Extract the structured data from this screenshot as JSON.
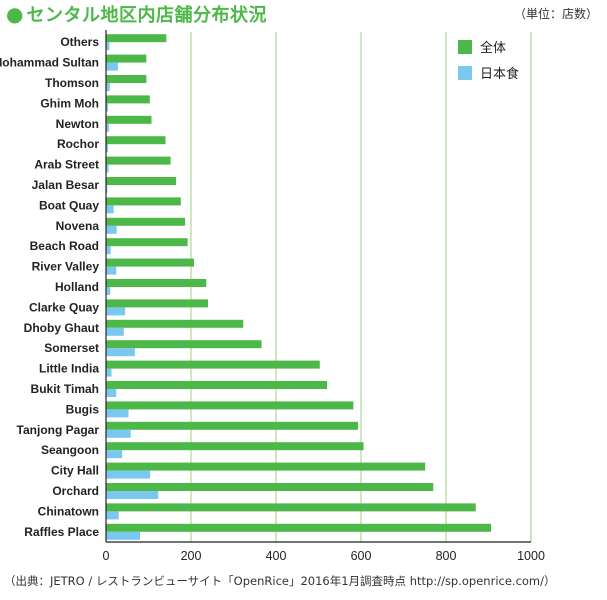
{
  "title": "センタル地区内店舗分布状況",
  "unit_note": "（単位：店数）",
  "source_note": "（出典：JETRO / レストランビューサイト「OpenRice」2016年1月調査時点 http://sp.openrice.com/）",
  "chart_data": {
    "type": "bar",
    "orientation": "horizontal",
    "categories": [
      "Others",
      "Mohammad Sultan",
      "Thomson",
      "Ghim Moh",
      "Newton",
      "Rochor",
      "Arab Street",
      "Jalan Besar",
      "Boat Quay",
      "Novena",
      "Beach Road",
      "River Valley",
      "Holland",
      "Clarke Quay",
      "Dhoby Ghaut",
      "Somerset",
      "Little India",
      "Bukit Timah",
      "Bugis",
      "Tanjong Pagar",
      "Seangoon",
      "City Hall",
      "Orchard",
      "Chinatown",
      "Raffles Place"
    ],
    "series": [
      {
        "name": "全体",
        "color": "#4cb848",
        "values": [
          142,
          95,
          95,
          103,
          107,
          140,
          152,
          165,
          176,
          186,
          192,
          207,
          236,
          240,
          323,
          366,
          503,
          520,
          582,
          593,
          606,
          751,
          770,
          870,
          906
        ]
      },
      {
        "name": "日本食",
        "color": "#7bc8ef",
        "values": [
          8,
          28,
          9,
          5,
          7,
          5,
          6,
          3,
          18,
          25,
          11,
          24,
          10,
          45,
          42,
          68,
          13,
          24,
          53,
          58,
          38,
          104,
          123,
          30,
          80
        ]
      }
    ],
    "xlim": [
      0,
      1000
    ],
    "xticks": [
      0,
      200,
      400,
      600,
      800,
      1000
    ],
    "grid": true,
    "legend_position": "top-right"
  }
}
